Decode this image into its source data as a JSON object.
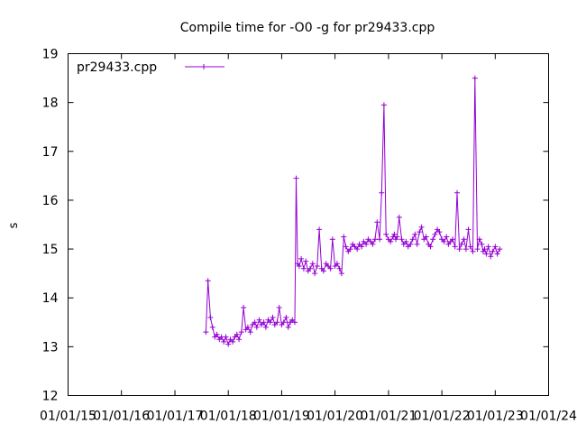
{
  "chart_data": {
    "type": "line",
    "title": "Compile time for -O0 -g for pr29433.cpp",
    "xlabel": "",
    "ylabel": "s",
    "ylim": [
      12,
      19
    ],
    "xlim": [
      "2015-01-01",
      "2024-01-01"
    ],
    "y_ticks": [
      "12",
      "13",
      "14",
      "15",
      "16",
      "17",
      "18",
      "19"
    ],
    "x_ticks": [
      "01/01/15",
      "01/01/16",
      "01/01/17",
      "01/01/18",
      "01/01/19",
      "01/01/20",
      "01/01/21",
      "01/01/22",
      "01/01/23",
      "01/01/24"
    ],
    "x_tick_dates": [
      "2015-01-01",
      "2016-01-01",
      "2017-01-01",
      "2018-01-01",
      "2019-01-01",
      "2020-01-01",
      "2021-01-01",
      "2022-01-01",
      "2023-01-01",
      "2024-01-01"
    ],
    "grid": false,
    "legend_position": "top-left",
    "series": [
      {
        "name": "pr29433.cpp",
        "color": "#9400d3",
        "marker": "plus",
        "x": [
          "2017-08-01",
          "2017-08-15",
          "2017-09-01",
          "2017-09-15",
          "2017-10-01",
          "2017-10-15",
          "2017-11-01",
          "2017-11-15",
          "2017-12-01",
          "2017-12-15",
          "2018-01-01",
          "2018-01-15",
          "2018-02-01",
          "2018-02-15",
          "2018-03-01",
          "2018-03-15",
          "2018-04-01",
          "2018-04-15",
          "2018-05-01",
          "2018-05-15",
          "2018-06-01",
          "2018-06-15",
          "2018-07-01",
          "2018-07-15",
          "2018-08-01",
          "2018-08-15",
          "2018-09-01",
          "2018-09-15",
          "2018-10-01",
          "2018-10-15",
          "2018-11-01",
          "2018-11-15",
          "2018-12-01",
          "2018-12-15",
          "2019-01-01",
          "2019-01-15",
          "2019-02-01",
          "2019-02-15",
          "2019-03-01",
          "2019-03-15",
          "2019-04-01",
          "2019-04-10",
          "2019-04-20",
          "2019-05-01",
          "2019-05-15",
          "2019-06-01",
          "2019-06-15",
          "2019-07-01",
          "2019-07-15",
          "2019-08-01",
          "2019-08-15",
          "2019-09-01",
          "2019-09-15",
          "2019-10-01",
          "2019-10-15",
          "2019-11-01",
          "2019-11-15",
          "2019-12-01",
          "2019-12-15",
          "2020-01-01",
          "2020-01-15",
          "2020-02-01",
          "2020-02-15",
          "2020-03-01",
          "2020-03-15",
          "2020-04-01",
          "2020-04-15",
          "2020-05-01",
          "2020-05-15",
          "2020-06-01",
          "2020-06-15",
          "2020-07-01",
          "2020-07-15",
          "2020-08-01",
          "2020-08-15",
          "2020-09-01",
          "2020-09-15",
          "2020-10-01",
          "2020-10-15",
          "2020-11-01",
          "2020-11-15",
          "2020-12-01",
          "2020-12-15",
          "2021-01-01",
          "2021-01-15",
          "2021-02-01",
          "2021-02-10",
          "2021-02-20",
          "2021-03-01",
          "2021-03-15",
          "2021-04-01",
          "2021-04-15",
          "2021-05-01",
          "2021-05-15",
          "2021-06-01",
          "2021-06-15",
          "2021-07-01",
          "2021-07-15",
          "2021-08-01",
          "2021-08-15",
          "2021-09-01",
          "2021-09-15",
          "2021-10-01",
          "2021-10-15",
          "2021-11-01",
          "2021-11-15",
          "2021-12-01",
          "2021-12-15",
          "2022-01-01",
          "2022-01-15",
          "2022-02-01",
          "2022-02-15",
          "2022-03-01",
          "2022-03-15",
          "2022-04-01",
          "2022-04-15",
          "2022-05-01",
          "2022-05-15",
          "2022-06-01",
          "2022-06-15",
          "2022-07-01",
          "2022-07-15",
          "2022-08-01",
          "2022-08-15",
          "2022-09-01",
          "2022-09-15",
          "2022-10-01",
          "2022-10-10",
          "2022-10-20",
          "2022-11-01",
          "2022-11-15",
          "2022-12-01",
          "2022-12-15",
          "2023-01-01",
          "2023-01-15",
          "2023-02-01"
        ],
        "y": [
          13.3,
          14.35,
          13.6,
          13.4,
          13.2,
          13.25,
          13.15,
          13.2,
          13.1,
          13.2,
          13.05,
          13.15,
          13.1,
          13.2,
          13.25,
          13.15,
          13.3,
          13.8,
          13.35,
          13.4,
          13.3,
          13.45,
          13.5,
          13.4,
          13.55,
          13.45,
          13.5,
          13.4,
          13.55,
          13.5,
          13.6,
          13.45,
          13.5,
          13.8,
          13.45,
          13.5,
          13.6,
          13.4,
          13.5,
          13.55,
          13.5,
          16.45,
          14.7,
          14.65,
          14.8,
          14.6,
          14.75,
          14.55,
          14.6,
          14.7,
          14.5,
          14.65,
          15.4,
          14.6,
          14.55,
          14.7,
          14.65,
          14.6,
          15.2,
          14.65,
          14.7,
          14.6,
          14.5,
          15.25,
          15.05,
          14.95,
          15.0,
          15.1,
          15.05,
          15.0,
          15.1,
          15.05,
          15.15,
          15.1,
          15.2,
          15.15,
          15.1,
          15.2,
          15.55,
          15.2,
          16.15,
          17.95,
          15.3,
          15.2,
          15.15,
          15.25,
          15.3,
          15.2,
          15.25,
          15.65,
          15.2,
          15.1,
          15.15,
          15.05,
          15.1,
          15.2,
          15.3,
          15.1,
          15.35,
          15.45,
          15.2,
          15.25,
          15.1,
          15.05,
          15.2,
          15.3,
          15.4,
          15.35,
          15.2,
          15.15,
          15.25,
          15.1,
          15.15,
          15.2,
          15.05,
          16.15,
          15.0,
          15.1,
          15.2,
          15.0,
          15.4,
          15.05,
          14.95,
          18.5,
          15.0,
          15.2,
          15.1,
          14.95,
          15.0,
          14.9,
          15.05,
          14.85,
          14.95,
          15.05,
          14.9,
          15.0
        ]
      }
    ]
  }
}
